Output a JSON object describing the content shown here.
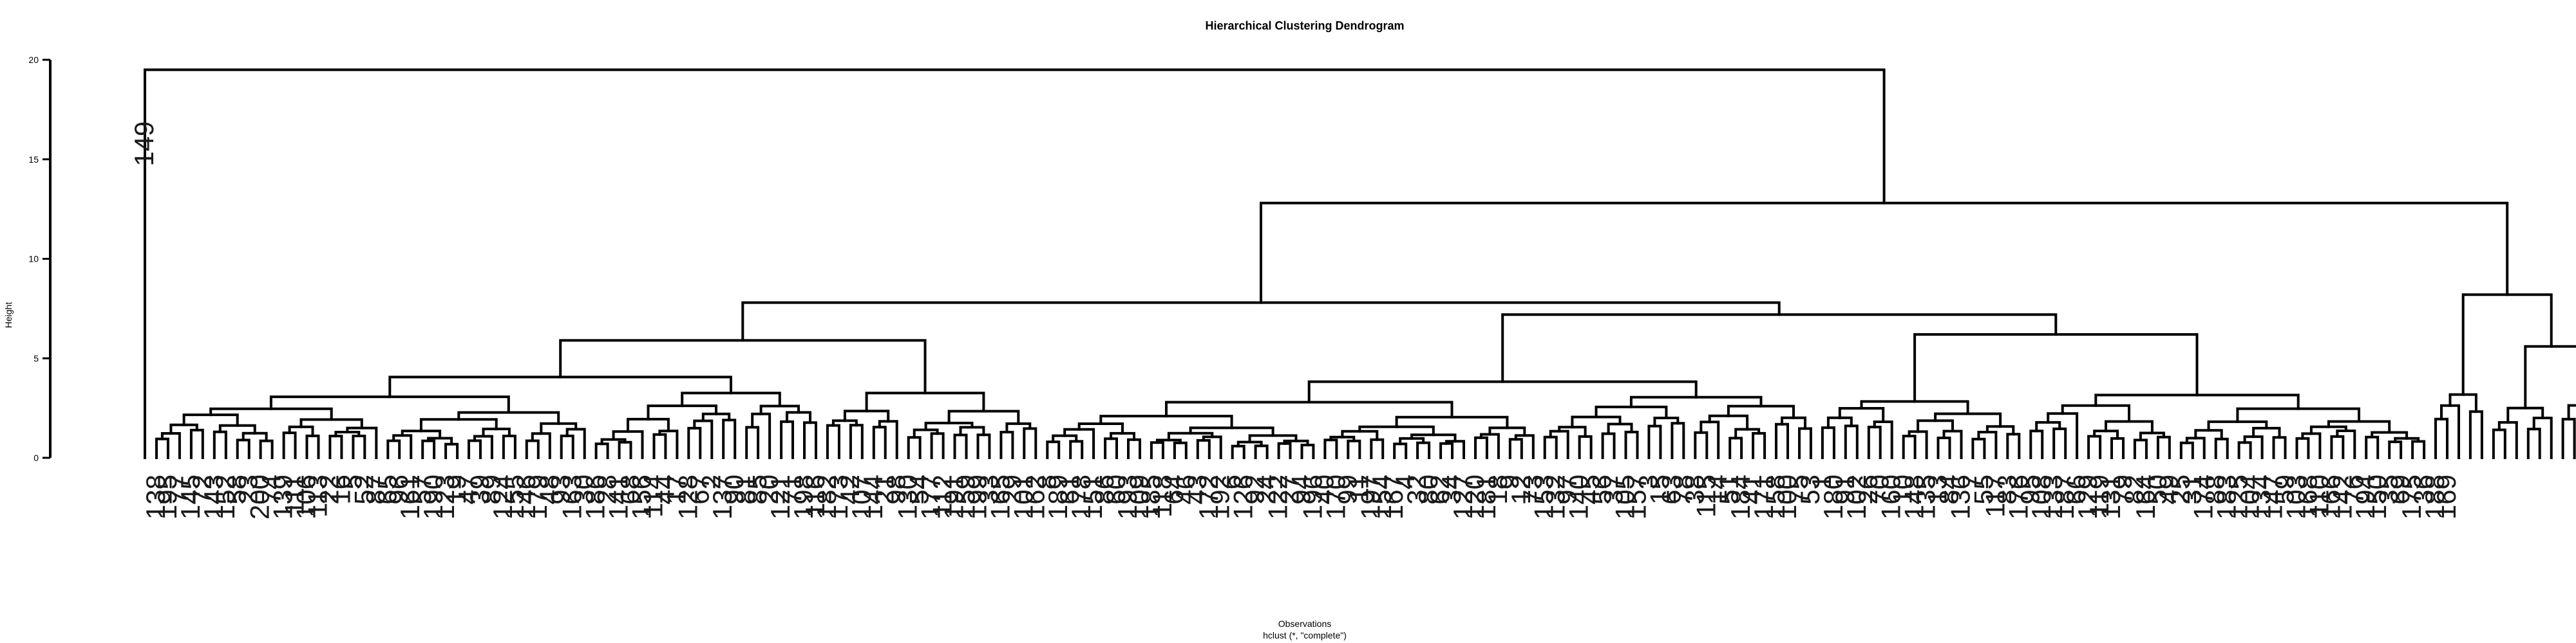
{
  "chart_data": {
    "type": "dendrogram",
    "title": "Hierarchical Clustering Dendrogram",
    "xlabel": "Observations",
    "subtitle": "hclust (*, \"complete\")",
    "ylabel": "Height",
    "ylim": [
      0,
      20
    ],
    "yticks": [
      0,
      5,
      10,
      15,
      20
    ],
    "yticklabels": [
      "0",
      "5",
      "10",
      "15",
      "20"
    ],
    "leaf_labels": [
      "149",
      "138",
      "195",
      "77",
      "145",
      "72",
      "143",
      "152",
      "58",
      "23",
      "200",
      "74",
      "139",
      "111",
      "106",
      "113",
      "22",
      "16",
      "5",
      "52",
      "87",
      "65",
      "96",
      "161",
      "57",
      "190",
      "123",
      "19",
      "47",
      "39",
      "89",
      "124",
      "155",
      "146",
      "179",
      "48",
      "93",
      "163",
      "30",
      "186",
      "28",
      "141",
      "68",
      "156",
      "114",
      "44",
      "17",
      "128",
      "67",
      "2",
      "137",
      "90",
      "81",
      "85",
      "20",
      "121",
      "71",
      "198",
      "116",
      "182",
      "173",
      "42",
      "107",
      "144",
      "21",
      "98",
      "130",
      "54",
      "177",
      "112",
      "191",
      "159",
      "199",
      "33",
      "165",
      "29",
      "101",
      "162",
      "8",
      "189",
      "61",
      "178",
      "151",
      "86",
      "60",
      "193",
      "109",
      "185",
      "118",
      "64",
      "46",
      "43",
      "172",
      "192",
      "6",
      "126",
      "92",
      "24",
      "122",
      "27",
      "94",
      "196",
      "40",
      "170",
      "99",
      "11",
      "197",
      "154",
      "167",
      "4",
      "32",
      "80",
      "62",
      "34",
      "127",
      "120",
      "181",
      "18",
      "9",
      "12",
      "73",
      "153",
      "132",
      "97",
      "140",
      "45",
      "56",
      "37",
      "105",
      "157",
      "3",
      "15",
      "63",
      "78",
      "38",
      "115",
      "14",
      "51",
      "184",
      "41",
      "171",
      "158",
      "100",
      "75",
      "53",
      "1",
      "180",
      "91",
      "102",
      "26",
      "70",
      "160",
      "10",
      "148",
      "135",
      "13",
      "84",
      "136",
      "7",
      "55",
      "117",
      "83",
      "176",
      "95",
      "108",
      "133",
      "187",
      "66",
      "129",
      "119",
      "131",
      "79",
      "82",
      "164",
      "50",
      "49",
      "25",
      "31",
      "174",
      "88",
      "183",
      "125",
      "104",
      "134",
      "147",
      "59",
      "103",
      "168",
      "110",
      "166",
      "142",
      "76",
      "194",
      "150",
      "35",
      "69",
      "175",
      "36",
      "188",
      "169"
    ],
    "top_merges": [
      {
        "height": 19.5,
        "description": "observation 149 joins all remaining observations"
      },
      {
        "height": 12.8,
        "description": "main group splits into large left cluster and small right cluster"
      },
      {
        "height": 8.2,
        "description": "small right cluster of 19 observations"
      },
      {
        "height": 7.8,
        "description": "large left cluster splits into two subclusters"
      }
    ]
  }
}
